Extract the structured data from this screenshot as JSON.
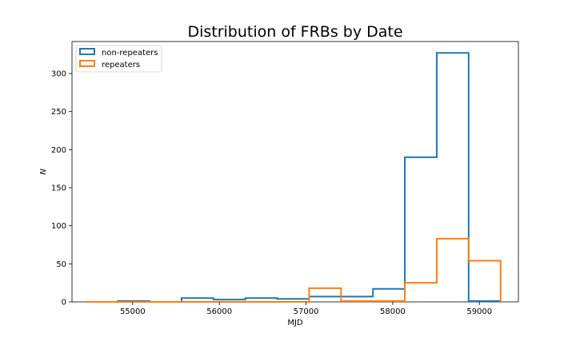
{
  "chart_data": {
    "type": "histogram",
    "title": "Distribution of FRBs by Date",
    "xlabel": "MJD",
    "ylabel": "N",
    "xlim": [
      54300,
      59450
    ],
    "ylim": [
      0,
      342
    ],
    "xticks": [
      55000,
      56000,
      57000,
      58000,
      59000
    ],
    "yticks": [
      0,
      50,
      100,
      150,
      200,
      250,
      300
    ],
    "legend_position": "upper-left",
    "series": [
      {
        "name": "non-repeaters",
        "color": "#1f77b4",
        "bin_edges": [
          54460,
          54828,
          55196,
          55564,
          55932,
          56300,
          56668,
          57036,
          57404,
          57772,
          58140,
          58508,
          58876,
          59244
        ],
        "counts": [
          0,
          1,
          0,
          5,
          3,
          5,
          4,
          7,
          7,
          17,
          190,
          327,
          1
        ]
      },
      {
        "name": "repeaters",
        "color": "#ff7f0e",
        "bin_edges": [
          54460,
          54828,
          55196,
          55564,
          55932,
          56300,
          56668,
          57036,
          57404,
          57772,
          58140,
          58508,
          58876,
          59244
        ],
        "counts": [
          0,
          0,
          0,
          0,
          0,
          0,
          0,
          18,
          1,
          1,
          25,
          83,
          54
        ]
      }
    ]
  }
}
